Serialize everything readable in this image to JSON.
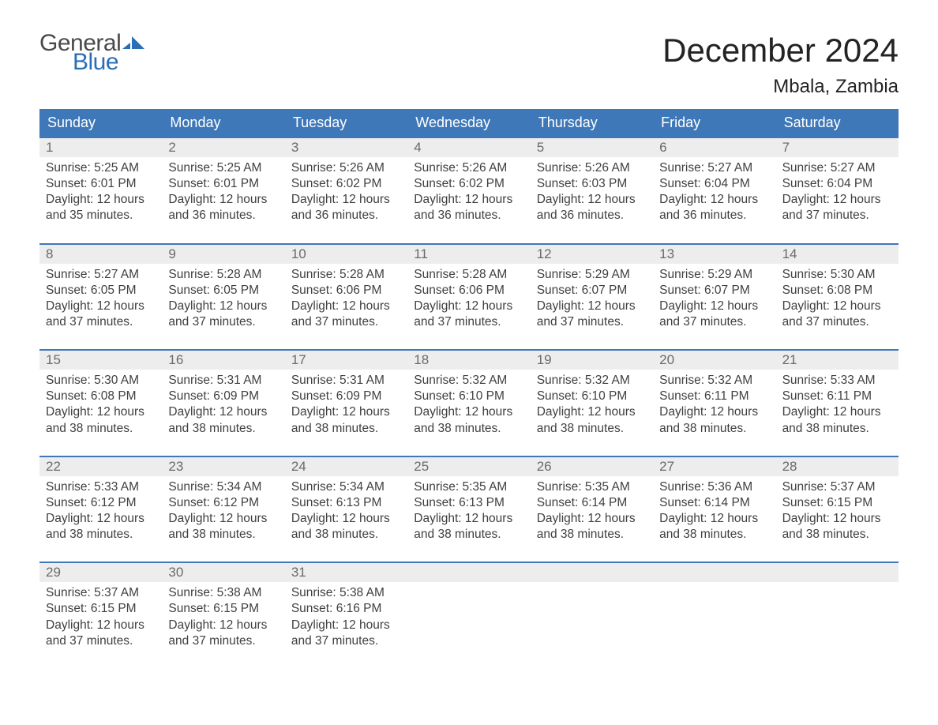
{
  "logo": {
    "general": "General",
    "blue": "Blue",
    "flag_color": "#2a6fb5"
  },
  "title": "December 2024",
  "location": "Mbala, Zambia",
  "header_bg": "#3e78b8",
  "header_fg": "#ffffff",
  "daynum_bg": "#ededed",
  "border_color": "#3e78b8",
  "text_color": "#404040",
  "weekdays": [
    "Sunday",
    "Monday",
    "Tuesday",
    "Wednesday",
    "Thursday",
    "Friday",
    "Saturday"
  ],
  "weeks": [
    [
      {
        "n": "1",
        "sr": "Sunrise: 5:25 AM",
        "ss": "Sunset: 6:01 PM",
        "d1": "Daylight: 12 hours",
        "d2": "and 35 minutes."
      },
      {
        "n": "2",
        "sr": "Sunrise: 5:25 AM",
        "ss": "Sunset: 6:01 PM",
        "d1": "Daylight: 12 hours",
        "d2": "and 36 minutes."
      },
      {
        "n": "3",
        "sr": "Sunrise: 5:26 AM",
        "ss": "Sunset: 6:02 PM",
        "d1": "Daylight: 12 hours",
        "d2": "and 36 minutes."
      },
      {
        "n": "4",
        "sr": "Sunrise: 5:26 AM",
        "ss": "Sunset: 6:02 PM",
        "d1": "Daylight: 12 hours",
        "d2": "and 36 minutes."
      },
      {
        "n": "5",
        "sr": "Sunrise: 5:26 AM",
        "ss": "Sunset: 6:03 PM",
        "d1": "Daylight: 12 hours",
        "d2": "and 36 minutes."
      },
      {
        "n": "6",
        "sr": "Sunrise: 5:27 AM",
        "ss": "Sunset: 6:04 PM",
        "d1": "Daylight: 12 hours",
        "d2": "and 36 minutes."
      },
      {
        "n": "7",
        "sr": "Sunrise: 5:27 AM",
        "ss": "Sunset: 6:04 PM",
        "d1": "Daylight: 12 hours",
        "d2": "and 37 minutes."
      }
    ],
    [
      {
        "n": "8",
        "sr": "Sunrise: 5:27 AM",
        "ss": "Sunset: 6:05 PM",
        "d1": "Daylight: 12 hours",
        "d2": "and 37 minutes."
      },
      {
        "n": "9",
        "sr": "Sunrise: 5:28 AM",
        "ss": "Sunset: 6:05 PM",
        "d1": "Daylight: 12 hours",
        "d2": "and 37 minutes."
      },
      {
        "n": "10",
        "sr": "Sunrise: 5:28 AM",
        "ss": "Sunset: 6:06 PM",
        "d1": "Daylight: 12 hours",
        "d2": "and 37 minutes."
      },
      {
        "n": "11",
        "sr": "Sunrise: 5:28 AM",
        "ss": "Sunset: 6:06 PM",
        "d1": "Daylight: 12 hours",
        "d2": "and 37 minutes."
      },
      {
        "n": "12",
        "sr": "Sunrise: 5:29 AM",
        "ss": "Sunset: 6:07 PM",
        "d1": "Daylight: 12 hours",
        "d2": "and 37 minutes."
      },
      {
        "n": "13",
        "sr": "Sunrise: 5:29 AM",
        "ss": "Sunset: 6:07 PM",
        "d1": "Daylight: 12 hours",
        "d2": "and 37 minutes."
      },
      {
        "n": "14",
        "sr": "Sunrise: 5:30 AM",
        "ss": "Sunset: 6:08 PM",
        "d1": "Daylight: 12 hours",
        "d2": "and 37 minutes."
      }
    ],
    [
      {
        "n": "15",
        "sr": "Sunrise: 5:30 AM",
        "ss": "Sunset: 6:08 PM",
        "d1": "Daylight: 12 hours",
        "d2": "and 38 minutes."
      },
      {
        "n": "16",
        "sr": "Sunrise: 5:31 AM",
        "ss": "Sunset: 6:09 PM",
        "d1": "Daylight: 12 hours",
        "d2": "and 38 minutes."
      },
      {
        "n": "17",
        "sr": "Sunrise: 5:31 AM",
        "ss": "Sunset: 6:09 PM",
        "d1": "Daylight: 12 hours",
        "d2": "and 38 minutes."
      },
      {
        "n": "18",
        "sr": "Sunrise: 5:32 AM",
        "ss": "Sunset: 6:10 PM",
        "d1": "Daylight: 12 hours",
        "d2": "and 38 minutes."
      },
      {
        "n": "19",
        "sr": "Sunrise: 5:32 AM",
        "ss": "Sunset: 6:10 PM",
        "d1": "Daylight: 12 hours",
        "d2": "and 38 minutes."
      },
      {
        "n": "20",
        "sr": "Sunrise: 5:32 AM",
        "ss": "Sunset: 6:11 PM",
        "d1": "Daylight: 12 hours",
        "d2": "and 38 minutes."
      },
      {
        "n": "21",
        "sr": "Sunrise: 5:33 AM",
        "ss": "Sunset: 6:11 PM",
        "d1": "Daylight: 12 hours",
        "d2": "and 38 minutes."
      }
    ],
    [
      {
        "n": "22",
        "sr": "Sunrise: 5:33 AM",
        "ss": "Sunset: 6:12 PM",
        "d1": "Daylight: 12 hours",
        "d2": "and 38 minutes."
      },
      {
        "n": "23",
        "sr": "Sunrise: 5:34 AM",
        "ss": "Sunset: 6:12 PM",
        "d1": "Daylight: 12 hours",
        "d2": "and 38 minutes."
      },
      {
        "n": "24",
        "sr": "Sunrise: 5:34 AM",
        "ss": "Sunset: 6:13 PM",
        "d1": "Daylight: 12 hours",
        "d2": "and 38 minutes."
      },
      {
        "n": "25",
        "sr": "Sunrise: 5:35 AM",
        "ss": "Sunset: 6:13 PM",
        "d1": "Daylight: 12 hours",
        "d2": "and 38 minutes."
      },
      {
        "n": "26",
        "sr": "Sunrise: 5:35 AM",
        "ss": "Sunset: 6:14 PM",
        "d1": "Daylight: 12 hours",
        "d2": "and 38 minutes."
      },
      {
        "n": "27",
        "sr": "Sunrise: 5:36 AM",
        "ss": "Sunset: 6:14 PM",
        "d1": "Daylight: 12 hours",
        "d2": "and 38 minutes."
      },
      {
        "n": "28",
        "sr": "Sunrise: 5:37 AM",
        "ss": "Sunset: 6:15 PM",
        "d1": "Daylight: 12 hours",
        "d2": "and 38 minutes."
      }
    ],
    [
      {
        "n": "29",
        "sr": "Sunrise: 5:37 AM",
        "ss": "Sunset: 6:15 PM",
        "d1": "Daylight: 12 hours",
        "d2": "and 37 minutes."
      },
      {
        "n": "30",
        "sr": "Sunrise: 5:38 AM",
        "ss": "Sunset: 6:15 PM",
        "d1": "Daylight: 12 hours",
        "d2": "and 37 minutes."
      },
      {
        "n": "31",
        "sr": "Sunrise: 5:38 AM",
        "ss": "Sunset: 6:16 PM",
        "d1": "Daylight: 12 hours",
        "d2": "and 37 minutes."
      },
      null,
      null,
      null,
      null
    ]
  ]
}
